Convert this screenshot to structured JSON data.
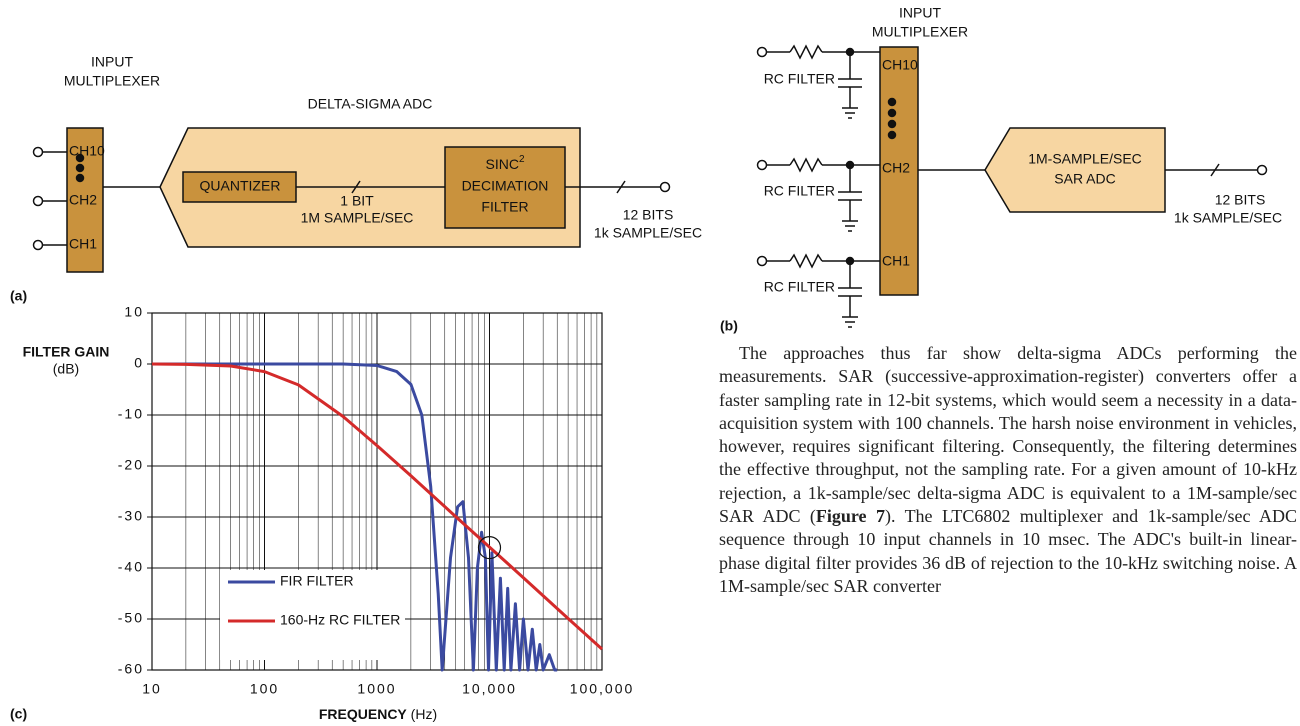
{
  "diagram_a": {
    "label": "(a)",
    "mux_title": [
      "INPUT",
      "MULTIPLEXER"
    ],
    "channels": [
      "CH10",
      "CH2",
      "CH1"
    ],
    "adc_title": "DELTA-SIGMA ADC",
    "quantizer": "QUANTIZER",
    "link": [
      "1 BIT",
      "1M SAMPLE/SEC"
    ],
    "filter": [
      "SINC",
      "2",
      "DECIMATION",
      "FILTER"
    ],
    "output": [
      "12 BITS",
      "1k SAMPLE/SEC"
    ]
  },
  "diagram_b": {
    "label": "(b)",
    "mux_title": [
      "INPUT",
      "MULTIPLEXER"
    ],
    "channels": [
      "CH10",
      "CH2",
      "CH1"
    ],
    "rc_labels": [
      "RC FILTER",
      "RC FILTER",
      "RC FILTER"
    ],
    "adc": [
      "1M-SAMPLE/SEC",
      "SAR ADC"
    ],
    "output": [
      "12 BITS",
      "1k SAMPLE/SEC"
    ]
  },
  "chart_data": {
    "type": "line",
    "label": "(c)",
    "ylabel": "FILTER GAIN",
    "yunit": "(dB)",
    "xlabel": "FREQUENCY",
    "xunit": "(Hz)",
    "xscale": "log",
    "xlim": [
      10,
      100000
    ],
    "ylim": [
      -60,
      10
    ],
    "xticks": [
      10,
      100,
      1000,
      {
        "value": 10000,
        "label": "10,000"
      },
      {
        "value": 100000,
        "label": "100,000"
      }
    ],
    "xminor": [
      20,
      30,
      40,
      50,
      60,
      70,
      80,
      90,
      200,
      300,
      400,
      500,
      600,
      700,
      800,
      900,
      2000,
      3000,
      4000,
      5000,
      6000,
      7000,
      8000,
      9000,
      20000,
      30000,
      40000,
      50000,
      60000,
      70000,
      80000,
      90000
    ],
    "yticks": [
      10,
      0,
      -10,
      -20,
      -30,
      -40,
      -50,
      -60
    ],
    "grid": true,
    "legend": "lower left",
    "highlight": {
      "x": 10000,
      "y": -36
    },
    "series": [
      {
        "name": "FIR FILTER",
        "color": "#3b4aa0",
        "x": [
          10,
          100,
          500,
          1000,
          1500,
          2000,
          2500,
          3000,
          3500,
          3800,
          4500,
          5200,
          5800,
          6500,
          7200,
          7800,
          8500,
          9200,
          9800,
          10500,
          11500,
          12500,
          13500,
          14500,
          15500,
          17000,
          18500,
          20000,
          22000,
          24000,
          26000,
          28000,
          30000,
          34000,
          38000,
          40000
        ],
        "values": [
          0,
          0,
          0,
          -0.3,
          -1.5,
          -4,
          -10,
          -24,
          -45,
          -60,
          -38,
          -28,
          -27,
          -38,
          -60,
          -40,
          -33,
          -38,
          -60,
          -37,
          -60,
          -42,
          -60,
          -44,
          -60,
          -47,
          -60,
          -50,
          -60,
          -52,
          -60,
          -55,
          -60,
          -57,
          -60,
          -60
        ]
      },
      {
        "name": "160-Hz RC FILTER",
        "color": "#d42a2a",
        "x": [
          10,
          20,
          50,
          100,
          200,
          500,
          1000,
          2000,
          5000,
          10000,
          20000,
          50000,
          100000
        ],
        "values": [
          0,
          -0.07,
          -0.4,
          -1.5,
          -4.1,
          -10.3,
          -16,
          -21.9,
          -29.9,
          -35.9,
          -41.9,
          -49.9,
          -55.9
        ]
      }
    ]
  },
  "text": {
    "p1": "The approaches thus far show delta-sigma ADCs performing the measurements. SAR (successive-approximation-register) converters offer a faster sampling rate in 12-bit systems, which would seem a necessity in a data-acquisition system with 100 channels. The harsh noise environment in vehicles, however, requires significant filtering. Consequently, the filtering determines the effective throughput, not the sampling rate. For a given amount of 10-kHz rejection, a 1k-sample/sec delta-sigma ADC is equivalent to a 1M-sample/sec SAR ADC (",
    "figref": "Figure 7",
    "p2": "). The LTC6802 multiplexer and 1k-sample/sec ADC sequence through 10 input channels in 10 msec. The ADC's built-in linear-phase digital filter provides 36 dB of rejection to the 10-kHz switching noise. A 1M-sample/sec SAR converter"
  }
}
